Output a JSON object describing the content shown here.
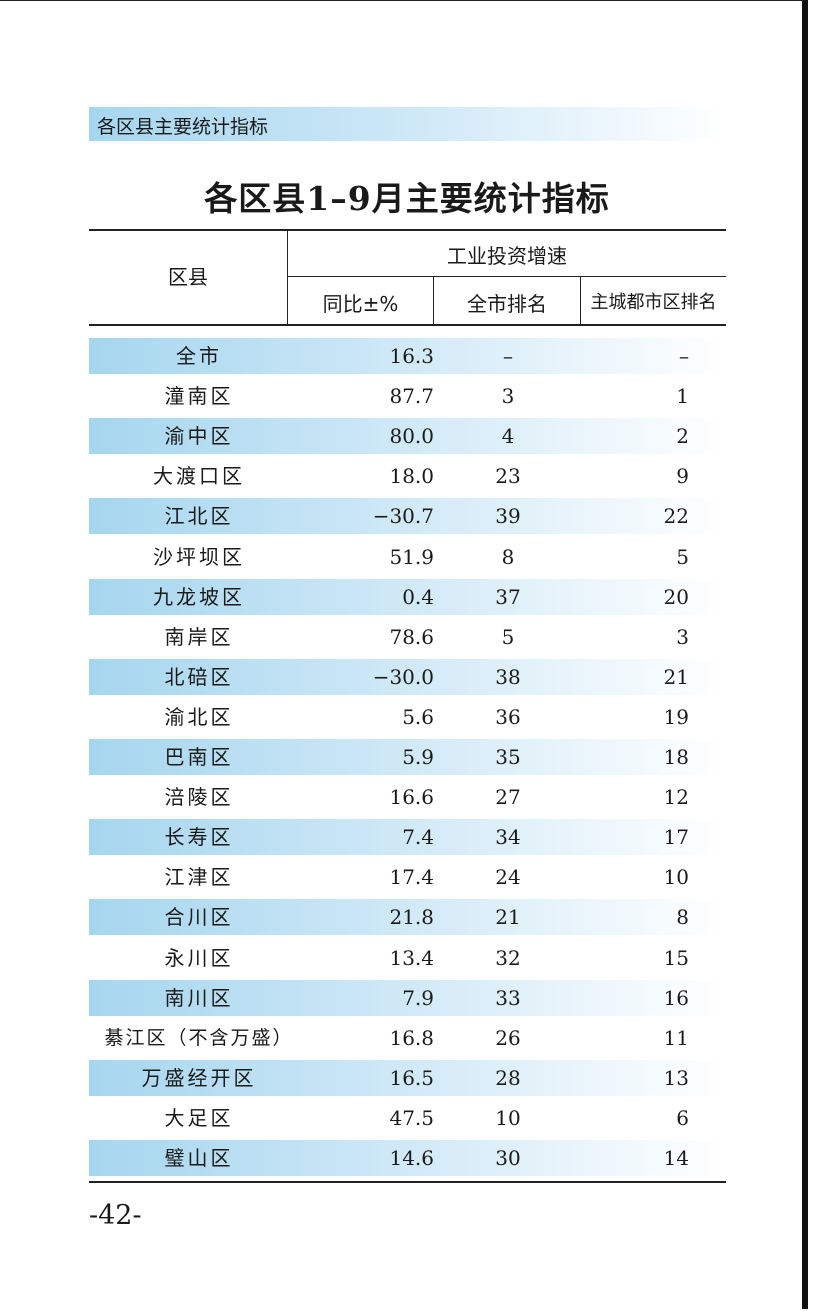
{
  "section_label": "各区县主要统计指标",
  "title": "各区县1–9月主要统计指标",
  "table": {
    "col_district": "区县",
    "group_header": "工业投资增速",
    "col_yoy": "同比±%",
    "col_city_rank": "全市排名",
    "col_main_rank": "主城都市区排名",
    "rows": [
      {
        "name": "全市",
        "yoy": "16.3",
        "city_rank": "–",
        "main_rank": "–"
      },
      {
        "name": "潼南区",
        "yoy": "87.7",
        "city_rank": "3",
        "main_rank": "1"
      },
      {
        "name": "渝中区",
        "yoy": "80.0",
        "city_rank": "4",
        "main_rank": "2"
      },
      {
        "name": "大渡口区",
        "yoy": "18.0",
        "city_rank": "23",
        "main_rank": "9"
      },
      {
        "name": "江北区",
        "yoy": "−30.7",
        "city_rank": "39",
        "main_rank": "22"
      },
      {
        "name": "沙坪坝区",
        "yoy": "51.9",
        "city_rank": "8",
        "main_rank": "5"
      },
      {
        "name": "九龙坡区",
        "yoy": "0.4",
        "city_rank": "37",
        "main_rank": "20"
      },
      {
        "name": "南岸区",
        "yoy": "78.6",
        "city_rank": "5",
        "main_rank": "3"
      },
      {
        "name": "北碚区",
        "yoy": "−30.0",
        "city_rank": "38",
        "main_rank": "21"
      },
      {
        "name": "渝北区",
        "yoy": "5.6",
        "city_rank": "36",
        "main_rank": "19"
      },
      {
        "name": "巴南区",
        "yoy": "5.9",
        "city_rank": "35",
        "main_rank": "18"
      },
      {
        "name": "涪陵区",
        "yoy": "16.6",
        "city_rank": "27",
        "main_rank": "12"
      },
      {
        "name": "长寿区",
        "yoy": "7.4",
        "city_rank": "34",
        "main_rank": "17"
      },
      {
        "name": "江津区",
        "yoy": "17.4",
        "city_rank": "24",
        "main_rank": "10"
      },
      {
        "name": "合川区",
        "yoy": "21.8",
        "city_rank": "21",
        "main_rank": "8"
      },
      {
        "name": "永川区",
        "yoy": "13.4",
        "city_rank": "32",
        "main_rank": "15"
      },
      {
        "name": "南川区",
        "yoy": "7.9",
        "city_rank": "33",
        "main_rank": "16"
      },
      {
        "name": "綦江区（不含万盛）",
        "yoy": "16.8",
        "city_rank": "26",
        "main_rank": "11"
      },
      {
        "name": "万盛经开区",
        "yoy": "16.5",
        "city_rank": "28",
        "main_rank": "13"
      },
      {
        "name": "大足区",
        "yoy": "47.5",
        "city_rank": "10",
        "main_rank": "6"
      },
      {
        "name": "璧山区",
        "yoy": "14.6",
        "city_rank": "30",
        "main_rank": "14"
      }
    ]
  },
  "page_number": "-42-",
  "colors": {
    "band": "#a6d6ef",
    "rule": "#222222"
  }
}
